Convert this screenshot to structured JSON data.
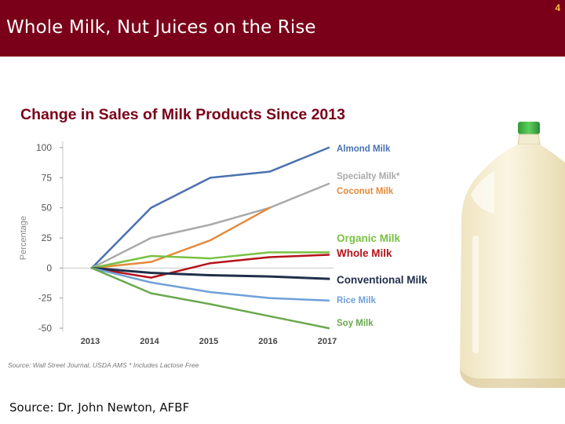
{
  "header": {
    "title": "Whole Milk, Nut Juices on the Rise",
    "page_number": "4"
  },
  "footer": {
    "source": "Source: Dr. John Newton, AFBF"
  },
  "chart_data": {
    "type": "line",
    "title": "Change in Sales of Milk Products Since 2013",
    "ylabel": "Percentage",
    "xlabel": "",
    "x": [
      "2013",
      "2014",
      "2015",
      "2016",
      "2017"
    ],
    "yticks": [
      "100",
      "75",
      "50",
      "25",
      "0",
      "-25",
      "-50"
    ],
    "ylim": [
      -50,
      100
    ],
    "grid": "zero-line only",
    "legend": "direct labels at right of lines",
    "source_note": "Source: Wall Street Journal, USDA AMS   * Includes Lactose Free",
    "series": [
      {
        "name": "Almond Milk",
        "color": "#4a72b0",
        "values": [
          0,
          50,
          75,
          80,
          100
        ]
      },
      {
        "name": "Specialty Milk*",
        "color": "#aaaaaa",
        "values": [
          0,
          25,
          36,
          50,
          70
        ]
      },
      {
        "name": "Coconut Milk",
        "color": "#e58a3a",
        "values": [
          0,
          5,
          23,
          50,
          null
        ]
      },
      {
        "name": "Organic Milk",
        "color": "#7ac143",
        "values": [
          0,
          10,
          8,
          13,
          13
        ]
      },
      {
        "name": "Whole Milk",
        "color": "#b5121b",
        "values": [
          0,
          -8,
          4,
          9,
          11
        ]
      },
      {
        "name": "Conventional Milk",
        "color": "#1f2f4a",
        "values": [
          0,
          -4,
          -6,
          -7,
          -9
        ]
      },
      {
        "name": "Rice Milk",
        "color": "#6fa0d8",
        "values": [
          0,
          -12,
          -20,
          -25,
          -27
        ]
      },
      {
        "name": "Soy Milk",
        "color": "#6aa84f",
        "values": [
          0,
          -21,
          -30,
          -40,
          -50
        ]
      }
    ]
  }
}
